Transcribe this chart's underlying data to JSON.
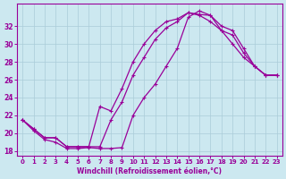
{
  "xlabel": "Windchill (Refroidissement éolien,°C)",
  "background_color": "#cce8f0",
  "line_color": "#990099",
  "grid_color": "#aaccd8",
  "xlim": [
    -0.5,
    23.5
  ],
  "ylim": [
    17.5,
    34.5
  ],
  "yticks": [
    18,
    20,
    22,
    24,
    26,
    28,
    30,
    32
  ],
  "xticks": [
    0,
    1,
    2,
    3,
    4,
    5,
    6,
    7,
    8,
    9,
    10,
    11,
    12,
    13,
    14,
    15,
    16,
    17,
    18,
    19,
    20,
    21,
    22,
    23
  ],
  "line1_x": [
    0,
    1,
    2,
    3,
    4,
    5,
    6,
    7,
    8,
    9,
    10,
    11,
    12,
    13,
    14,
    15,
    16,
    17,
    18,
    19,
    20,
    21,
    22,
    23
  ],
  "line1_y": [
    21.5,
    20.3,
    19.3,
    19.0,
    18.3,
    18.3,
    18.4,
    18.3,
    18.3,
    18.4,
    22.0,
    24.0,
    25.5,
    27.5,
    29.5,
    33.0,
    33.7,
    33.2,
    32.0,
    31.5,
    29.5,
    27.5,
    26.5,
    26.5
  ],
  "line2_x": [
    0,
    1,
    2,
    3,
    4,
    5,
    6,
    7,
    8,
    9,
    10,
    11,
    12,
    13,
    14,
    15,
    16,
    17,
    18,
    19,
    20,
    21,
    22,
    23
  ],
  "line2_y": [
    21.5,
    20.5,
    19.5,
    19.5,
    18.5,
    18.5,
    18.5,
    23.0,
    22.5,
    25.0,
    28.0,
    30.0,
    31.5,
    32.5,
    32.8,
    33.5,
    33.2,
    32.5,
    31.5,
    30.0,
    28.5,
    27.5,
    26.5,
    26.5
  ],
  "line3_x": [
    0,
    1,
    2,
    3,
    4,
    5,
    6,
    7,
    8,
    9,
    10,
    11,
    12,
    13,
    14,
    15,
    16,
    17,
    18,
    19,
    20,
    21,
    22,
    23
  ],
  "line3_y": [
    21.5,
    20.5,
    19.5,
    19.5,
    18.5,
    18.5,
    18.5,
    18.5,
    21.5,
    23.5,
    26.5,
    28.5,
    30.5,
    31.8,
    32.5,
    33.5,
    33.3,
    33.2,
    31.5,
    31.0,
    29.0,
    27.5,
    26.5,
    26.5
  ]
}
